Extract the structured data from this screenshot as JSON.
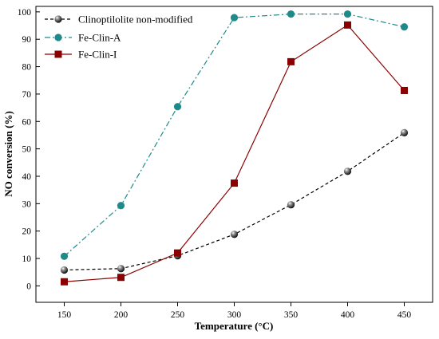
{
  "chart_data": {
    "type": "line",
    "xlabel": "Temperature (°C)",
    "ylabel": "NO conversion (%)",
    "xlim": [
      125,
      475
    ],
    "ylim": [
      -6,
      102
    ],
    "x_ticks": [
      150,
      200,
      250,
      300,
      350,
      400,
      450
    ],
    "y_ticks": [
      0,
      10,
      20,
      30,
      40,
      50,
      60,
      70,
      80,
      90,
      100
    ],
    "grid": false,
    "legend_position": "top-left",
    "x": [
      150,
      200,
      250,
      300,
      350,
      400,
      450
    ],
    "series": [
      {
        "name": "Clinoptilolite non-modified",
        "values": [
          5.8,
          6.3,
          11.0,
          18.8,
          29.6,
          41.8,
          55.9
        ],
        "color": "#000000",
        "line_style": "dashed",
        "marker": "sphere"
      },
      {
        "name": "Fe-Clin-A",
        "values": [
          10.8,
          29.3,
          65.4,
          97.9,
          99.2,
          99.2,
          94.5
        ],
        "color": "#1f8a8a",
        "line_style": "dash-dot",
        "marker": "circle"
      },
      {
        "name": "Fe-Clin-I",
        "values": [
          1.5,
          3.1,
          12.0,
          37.5,
          81.8,
          95.2,
          71.3
        ],
        "color": "#8b0000",
        "line_style": "solid",
        "marker": "square"
      }
    ]
  }
}
